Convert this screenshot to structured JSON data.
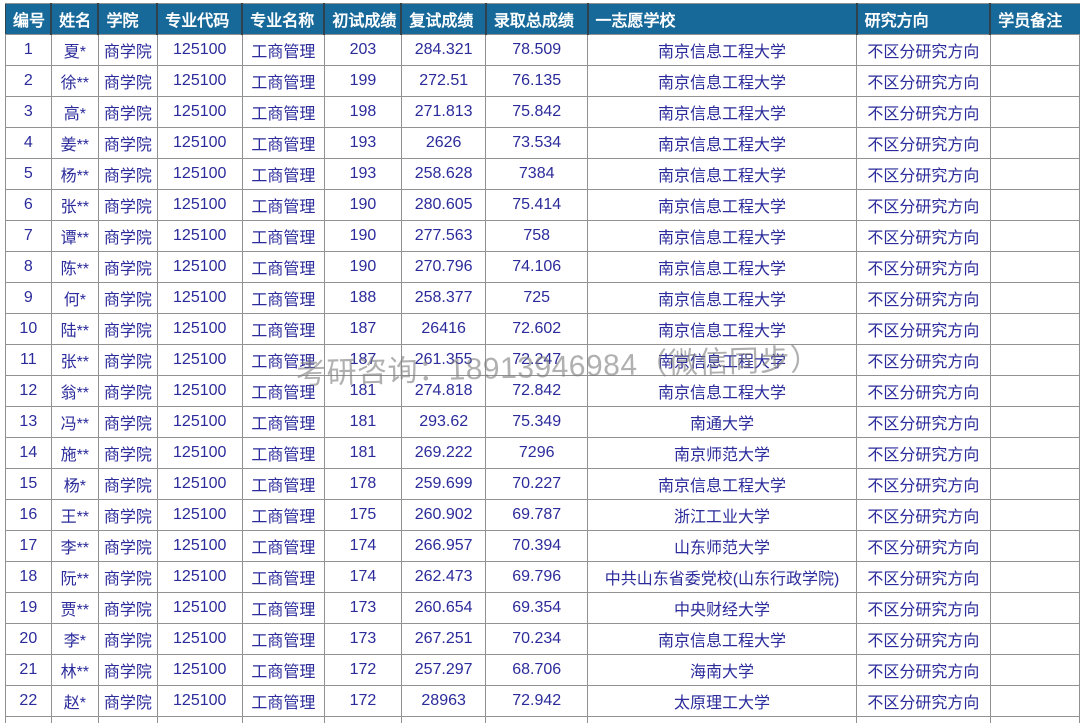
{
  "colors": {
    "header_bg": "#17699a",
    "header_text": "#ffffff",
    "cell_text": "#2b2b9b",
    "grid_line": "#919191",
    "watermark_text_color": "rgba(124,124,124,0.60)"
  },
  "watermark": {
    "text": "考研咨询：18913946984（微信同步）"
  },
  "table": {
    "columns": [
      {
        "key": "no",
        "label": "编号"
      },
      {
        "key": "name",
        "label": "姓名"
      },
      {
        "key": "college",
        "label": "学院"
      },
      {
        "key": "major_code",
        "label": "专业代码"
      },
      {
        "key": "major_name",
        "label": "专业名称"
      },
      {
        "key": "initial_score",
        "label": "初试成绩"
      },
      {
        "key": "retest_score",
        "label": "复试成绩"
      },
      {
        "key": "total_score",
        "label": "录取总成绩"
      },
      {
        "key": "school",
        "label": "一志愿学校"
      },
      {
        "key": "direction",
        "label": "研究方向"
      },
      {
        "key": "remark",
        "label": "学员备注"
      }
    ],
    "rows": [
      [
        "1",
        "夏*",
        "商学院",
        "125100",
        "工商管理",
        "203",
        "284.321",
        "78.509",
        "南京信息工程大学",
        "不区分研究方向",
        ""
      ],
      [
        "2",
        "徐**",
        "商学院",
        "125100",
        "工商管理",
        "199",
        "272.51",
        "76.135",
        "南京信息工程大学",
        "不区分研究方向",
        ""
      ],
      [
        "3",
        "高*",
        "商学院",
        "125100",
        "工商管理",
        "198",
        "271.813",
        "75.842",
        "南京信息工程大学",
        "不区分研究方向",
        ""
      ],
      [
        "4",
        "姜**",
        "商学院",
        "125100",
        "工商管理",
        "193",
        "2626",
        "73.534",
        "南京信息工程大学",
        "不区分研究方向",
        ""
      ],
      [
        "5",
        "杨**",
        "商学院",
        "125100",
        "工商管理",
        "193",
        "258.628",
        "7384",
        "南京信息工程大学",
        "不区分研究方向",
        ""
      ],
      [
        "6",
        "张**",
        "商学院",
        "125100",
        "工商管理",
        "190",
        "280.605",
        "75.414",
        "南京信息工程大学",
        "不区分研究方向",
        ""
      ],
      [
        "7",
        "谭**",
        "商学院",
        "125100",
        "工商管理",
        "190",
        "277.563",
        "758",
        "南京信息工程大学",
        "不区分研究方向",
        ""
      ],
      [
        "8",
        "陈**",
        "商学院",
        "125100",
        "工商管理",
        "190",
        "270.796",
        "74.106",
        "南京信息工程大学",
        "不区分研究方向",
        ""
      ],
      [
        "9",
        "何*",
        "商学院",
        "125100",
        "工商管理",
        "188",
        "258.377",
        "725",
        "南京信息工程大学",
        "不区分研究方向",
        ""
      ],
      [
        "10",
        "陆**",
        "商学院",
        "125100",
        "工商管理",
        "187",
        "26416",
        "72.602",
        "南京信息工程大学",
        "不区分研究方向",
        ""
      ],
      [
        "11",
        "张**",
        "商学院",
        "125100",
        "工商管理",
        "187",
        "261.355",
        "72.247",
        "南京信息工程大学",
        "不区分研究方向",
        ""
      ],
      [
        "12",
        "翁**",
        "商学院",
        "125100",
        "工商管理",
        "181",
        "274.818",
        "72.842",
        "南京信息工程大学",
        "不区分研究方向",
        ""
      ],
      [
        "13",
        "冯**",
        "商学院",
        "125100",
        "工商管理",
        "181",
        "293.62",
        "75.349",
        "南通大学",
        "不区分研究方向",
        ""
      ],
      [
        "14",
        "施**",
        "商学院",
        "125100",
        "工商管理",
        "181",
        "269.222",
        "7296",
        "南京师范大学",
        "不区分研究方向",
        ""
      ],
      [
        "15",
        "杨*",
        "商学院",
        "125100",
        "工商管理",
        "178",
        "259.699",
        "70.227",
        "南京信息工程大学",
        "不区分研究方向",
        ""
      ],
      [
        "16",
        "王**",
        "商学院",
        "125100",
        "工商管理",
        "175",
        "260.902",
        "69.787",
        "浙江工业大学",
        "不区分研究方向",
        ""
      ],
      [
        "17",
        "李**",
        "商学院",
        "125100",
        "工商管理",
        "174",
        "266.957",
        "70.394",
        "山东师范大学",
        "不区分研究方向",
        ""
      ],
      [
        "18",
        "阮**",
        "商学院",
        "125100",
        "工商管理",
        "174",
        "262.473",
        "69.796",
        "中共山东省委党校(山东行政学院)",
        "不区分研究方向",
        ""
      ],
      [
        "19",
        "贾**",
        "商学院",
        "125100",
        "工商管理",
        "173",
        "260.654",
        "69.354",
        "中央财经大学",
        "不区分研究方向",
        ""
      ],
      [
        "20",
        "李*",
        "商学院",
        "125100",
        "工商管理",
        "173",
        "267.251",
        "70.234",
        "南京信息工程大学",
        "不区分研究方向",
        ""
      ],
      [
        "21",
        "林**",
        "商学院",
        "125100",
        "工商管理",
        "172",
        "257.297",
        "68.706",
        "海南大学",
        "不区分研究方向",
        ""
      ],
      [
        "22",
        "赵*",
        "商学院",
        "125100",
        "工商管理",
        "172",
        "28963",
        "72.942",
        "太原理工大学",
        "不区分研究方向",
        ""
      ]
    ]
  }
}
